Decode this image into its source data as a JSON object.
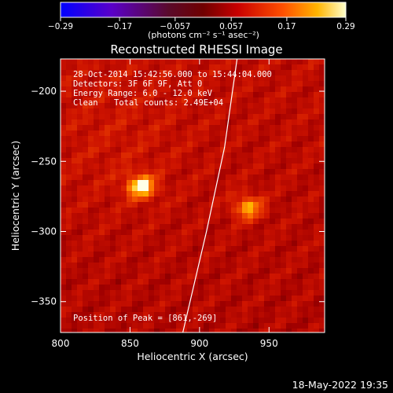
{
  "chart_data": {
    "type": "heatmap",
    "title": "Reconstructed RHESSI Image",
    "xlabel": "Heliocentric X (arcsec)",
    "ylabel": "Heliocentric Y (arcsec)",
    "xlim": [
      800,
      990
    ],
    "ylim": [
      -372,
      -177
    ],
    "x_ticks": [
      800,
      850,
      900,
      950
    ],
    "y_ticks": [
      -350,
      -300,
      -250,
      -200
    ],
    "x_tick_labels": [
      "800",
      "850",
      "900",
      "950"
    ],
    "y_tick_labels": [
      "−350",
      "−300",
      "−250",
      "−200"
    ],
    "colorbar": {
      "ticks": [
        -0.29,
        -0.17,
        -0.057,
        0.057,
        0.17,
        0.29
      ],
      "tick_labels": [
        "−0.29",
        "−0.17",
        "−0.057",
        "0.057",
        "0.17",
        "0.29"
      ],
      "units_text": "(photons cm⁻² s⁻¹ asec⁻²)",
      "range": [
        -0.29,
        0.29
      ]
    },
    "sources": [
      {
        "x": 858,
        "y": -268,
        "peak": 0.29
      },
      {
        "x": 935,
        "y": -283,
        "peak": 0.23
      }
    ],
    "limb": [
      [
        927,
        -177
      ],
      [
        918,
        -240
      ],
      [
        905,
        -300
      ],
      [
        888,
        -372
      ]
    ],
    "annotations": {
      "time_range": "28-Oct-2014 15:42:56.000 to 15:44:04.000",
      "detectors": "Detectors: 3F 6F 9F, Att 0",
      "energy": "Energy Range: 6.0 - 12.0 keV",
      "algorithm": "Clean",
      "total_counts": "Total counts: 2.49E+04",
      "peak_position": "Position of Peak = [861,-269]"
    },
    "timestamp": "18-May-2022 19:35"
  }
}
